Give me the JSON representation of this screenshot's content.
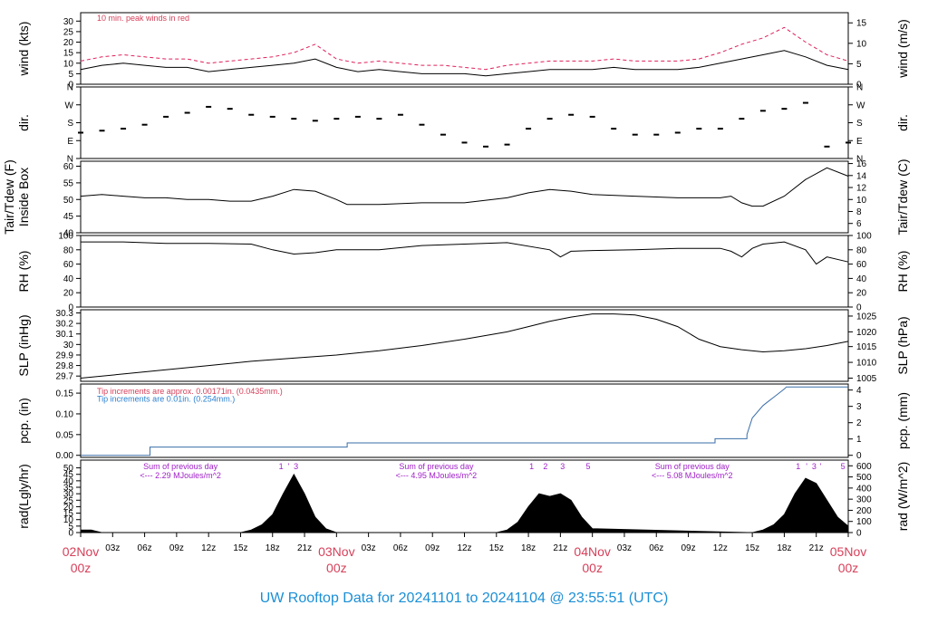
{
  "title": "UW Rooftop Data for 20241101  to  20241104 @ 23:55:51  (UTC)",
  "colors": {
    "title": "#1b8fd6",
    "date_label": "#d6405a",
    "peak": "#e0205a",
    "note_red": "#d6405a",
    "note_blue": "#2a7fd0",
    "pcp_line": "#3a6ea8",
    "solar_text": "#a020c8",
    "data": "#000000"
  },
  "x_axis": {
    "date_labels": [
      {
        "hour": 0,
        "line1": "02Nov",
        "line2": "00z"
      },
      {
        "hour": 24,
        "line1": "03Nov",
        "line2": "00z"
      },
      {
        "hour": 48,
        "line1": "04Nov",
        "line2": "00z"
      },
      {
        "hour": 72,
        "line1": "05Nov",
        "line2": "00z"
      }
    ],
    "hour_ticks": [
      {
        "hour": 3,
        "label": "03z"
      },
      {
        "hour": 6,
        "label": "06z"
      },
      {
        "hour": 9,
        "label": "09z"
      },
      {
        "hour": 12,
        "label": "12z"
      },
      {
        "hour": 15,
        "label": "15z"
      },
      {
        "hour": 18,
        "label": "18z"
      },
      {
        "hour": 21,
        "label": "21z"
      },
      {
        "hour": 27,
        "label": "03z"
      },
      {
        "hour": 30,
        "label": "06z"
      },
      {
        "hour": 33,
        "label": "09z"
      },
      {
        "hour": 36,
        "label": "12z"
      },
      {
        "hour": 39,
        "label": "15z"
      },
      {
        "hour": 42,
        "label": "18z"
      },
      {
        "hour": 45,
        "label": "21z"
      },
      {
        "hour": 51,
        "label": "03z"
      },
      {
        "hour": 54,
        "label": "06z"
      },
      {
        "hour": 57,
        "label": "09z"
      },
      {
        "hour": 60,
        "label": "12z"
      },
      {
        "hour": 63,
        "label": "15z"
      },
      {
        "hour": 66,
        "label": "18z"
      },
      {
        "hour": 69,
        "label": "21z"
      }
    ]
  },
  "chart_data": [
    {
      "type": "line",
      "id": "wind",
      "ylabel": "wind (kts)",
      "ylabel_right": "wind (m/s)",
      "ylim": [
        0,
        34
      ],
      "yticks": [
        0,
        5,
        10,
        15,
        20,
        25,
        30
      ],
      "right_ticks": [
        {
          "value": 0,
          "label": "0"
        },
        {
          "value": 9.72,
          "label": "5"
        },
        {
          "value": 19.44,
          "label": "10"
        },
        {
          "value": 29.16,
          "label": "15"
        }
      ],
      "annotation": "10 min. peak winds in red",
      "series": [
        {
          "role": "wind",
          "x": [
            0,
            2,
            4,
            6,
            8,
            10,
            12,
            14,
            16,
            18,
            20,
            22,
            24,
            26,
            28,
            30,
            32,
            34,
            36,
            38,
            40,
            42,
            44,
            46,
            48,
            50,
            52,
            54,
            56,
            58,
            60,
            62,
            64,
            66,
            68,
            70,
            72
          ],
          "y": [
            7,
            9,
            10,
            9,
            8,
            8,
            6,
            7,
            8,
            9,
            10,
            12,
            8,
            6,
            7,
            6,
            5,
            5,
            5,
            4,
            5,
            6,
            7,
            7,
            7,
            8,
            7,
            7,
            7,
            8,
            10,
            12,
            14,
            16,
            13,
            9,
            7
          ]
        },
        {
          "role": "peak",
          "x": [
            0,
            2,
            4,
            6,
            8,
            10,
            12,
            14,
            16,
            18,
            20,
            22,
            24,
            26,
            28,
            30,
            32,
            34,
            36,
            38,
            40,
            42,
            44,
            46,
            48,
            50,
            52,
            54,
            56,
            58,
            60,
            62,
            64,
            66,
            68,
            70,
            72
          ],
          "y": [
            11,
            13,
            14,
            13,
            12,
            12,
            10,
            11,
            12,
            13,
            15,
            19,
            12,
            10,
            11,
            10,
            9,
            9,
            8,
            7,
            9,
            10,
            11,
            11,
            11,
            12,
            11,
            11,
            11,
            12,
            15,
            19,
            22,
            27,
            20,
            14,
            11
          ]
        }
      ]
    },
    {
      "type": "scatter",
      "id": "dir",
      "ylabel": "dir.",
      "ylabel_right": "dir.",
      "ylim": [
        0,
        360
      ],
      "ytick_values": [
        0,
        90,
        180,
        270,
        360
      ],
      "ytick_labels": [
        "N",
        "E",
        "S",
        "W",
        "N"
      ],
      "series": [
        {
          "role": "direction",
          "x": [
            0,
            2,
            4,
            6,
            8,
            10,
            12,
            14,
            16,
            18,
            20,
            22,
            24,
            26,
            28,
            30,
            32,
            34,
            36,
            38,
            40,
            42,
            44,
            46,
            48,
            50,
            52,
            54,
            56,
            58,
            60,
            62,
            64,
            66,
            68,
            70,
            72
          ],
          "y": [
            130,
            140,
            150,
            170,
            210,
            230,
            260,
            250,
            220,
            210,
            200,
            190,
            200,
            210,
            200,
            220,
            170,
            120,
            80,
            60,
            70,
            150,
            200,
            220,
            210,
            150,
            120,
            120,
            130,
            150,
            150,
            200,
            240,
            250,
            280,
            60,
            80
          ]
        }
      ]
    },
    {
      "type": "line",
      "id": "temp",
      "ylabel": "Tair/Tdew (F)\nInside Box",
      "ylabel_right": "Tair/Tdew (C)",
      "ylim": [
        40,
        61.5
      ],
      "yticks": [
        40,
        45,
        50,
        55,
        60
      ],
      "right_ticks": [
        {
          "value": 42.8,
          "label": "6"
        },
        {
          "value": 46.4,
          "label": "8"
        },
        {
          "value": 50,
          "label": "10"
        },
        {
          "value": 53.6,
          "label": "12"
        },
        {
          "value": 57.2,
          "label": "14"
        },
        {
          "value": 60.8,
          "label": "16"
        }
      ],
      "series": [
        {
          "role": "tair",
          "x": [
            0,
            2,
            4,
            6,
            8,
            10,
            12,
            14,
            16,
            18,
            20,
            22,
            24,
            25,
            28,
            32,
            36,
            40,
            42,
            44,
            46,
            48,
            52,
            56,
            60,
            61,
            62,
            63,
            64,
            66,
            68,
            70,
            72
          ],
          "y": [
            51,
            51.5,
            51,
            50.5,
            50.5,
            50,
            50,
            49.5,
            49.5,
            51,
            53,
            52.5,
            50,
            48.5,
            48.5,
            49,
            49,
            50.5,
            52,
            53,
            52.5,
            51.5,
            51,
            50.5,
            50.5,
            51,
            49,
            48,
            48,
            51,
            56,
            59.5,
            57
          ]
        }
      ]
    },
    {
      "type": "line",
      "id": "rh",
      "ylabel": "RH (%)",
      "ylabel_right": "RH (%)",
      "ylim": [
        0,
        100
      ],
      "yticks": [
        0,
        20,
        40,
        60,
        80,
        100
      ],
      "right_ticks": [
        {
          "value": 0,
          "label": "0"
        },
        {
          "value": 20,
          "label": "20"
        },
        {
          "value": 40,
          "label": "40"
        },
        {
          "value": 60,
          "label": "60"
        },
        {
          "value": 80,
          "label": "80"
        },
        {
          "value": 100,
          "label": "100"
        }
      ],
      "series": [
        {
          "role": "rh",
          "x": [
            0,
            4,
            8,
            12,
            16,
            18,
            20,
            22,
            24,
            28,
            32,
            36,
            40,
            44,
            45,
            46,
            48,
            52,
            56,
            60,
            61,
            62,
            63,
            64,
            66,
            68,
            69,
            70,
            72
          ],
          "y": [
            91,
            91,
            89,
            89,
            88,
            80,
            74,
            76,
            80,
            80,
            86,
            88,
            90,
            80,
            70,
            78,
            79,
            80,
            82,
            82,
            78,
            70,
            82,
            88,
            91,
            80,
            60,
            70,
            63
          ]
        }
      ]
    },
    {
      "type": "line",
      "id": "slp",
      "ylabel": "SLP (inHg)",
      "ylabel_right": "SLP (hPa)",
      "ylim": [
        29.65,
        30.33
      ],
      "yticks": [
        29.7,
        29.8,
        29.9,
        30.0,
        30.1,
        30.2,
        30.3
      ],
      "right_ticks": [
        {
          "value": 29.68,
          "label": "1005"
        },
        {
          "value": 29.83,
          "label": "1010"
        },
        {
          "value": 29.98,
          "label": "1015"
        },
        {
          "value": 30.12,
          "label": "1020"
        },
        {
          "value": 30.27,
          "label": "1025"
        }
      ],
      "series": [
        {
          "role": "slp",
          "x": [
            0,
            4,
            8,
            12,
            16,
            20,
            24,
            28,
            32,
            36,
            40,
            42,
            44,
            46,
            48,
            50,
            52,
            54,
            56,
            58,
            60,
            62,
            64,
            66,
            68,
            70,
            72
          ],
          "y": [
            29.68,
            29.72,
            29.76,
            29.8,
            29.84,
            29.87,
            29.9,
            29.94,
            29.99,
            30.05,
            30.12,
            30.17,
            30.22,
            30.26,
            30.29,
            30.29,
            30.28,
            30.24,
            30.17,
            30.05,
            29.98,
            29.95,
            29.93,
            29.94,
            29.96,
            29.99,
            30.03
          ]
        }
      ]
    },
    {
      "type": "line",
      "id": "pcp",
      "ylabel": "pcp. (in)",
      "ylabel_right": "pcp. (mm)",
      "ylim": [
        -0.005,
        0.172
      ],
      "yticks": [
        0.0,
        0.05,
        0.1,
        0.15
      ],
      "ytick_labels": [
        "0.00",
        "0.05",
        "0.10",
        "0.15"
      ],
      "right_ticks": [
        {
          "value": 0,
          "label": "0"
        },
        {
          "value": 0.0394,
          "label": "1"
        },
        {
          "value": 0.0787,
          "label": "2"
        },
        {
          "value": 0.1181,
          "label": "3"
        },
        {
          "value": 0.1575,
          "label": "4"
        }
      ],
      "notes": [
        {
          "text": "Tip increments are approx. 0.00171in. (0.0435mm.)",
          "color": "note_red"
        },
        {
          "text": "Tip increments are 0.01in. (0.254mm.)",
          "color": "note_blue"
        }
      ],
      "series": [
        {
          "role": "pcp",
          "step": true,
          "x": [
            0,
            6.5,
            6.5,
            25,
            25,
            59.5,
            59.5,
            62.5,
            62.5,
            63,
            64,
            64.5,
            65,
            65.5,
            66,
            66.2,
            72
          ],
          "y": [
            0,
            0,
            0.02,
            0.02,
            0.03,
            0.03,
            0.04,
            0.04,
            0.05,
            0.09,
            0.12,
            0.13,
            0.14,
            0.15,
            0.16,
            0.165,
            0.165
          ]
        }
      ]
    },
    {
      "type": "area",
      "id": "rad",
      "ylabel": "rad(Lgly/hr)",
      "ylabel_right": "rad (W/m^2)",
      "ylim": [
        0,
        56
      ],
      "yticks": [
        0,
        5,
        10,
        15,
        20,
        25,
        30,
        35,
        40,
        45,
        50
      ],
      "right_ticks": [
        {
          "value": 0,
          "label": "0"
        },
        {
          "value": 8.6,
          "label": "100"
        },
        {
          "value": 17.2,
          "label": "200"
        },
        {
          "value": 25.8,
          "label": "300"
        },
        {
          "value": 34.4,
          "label": "400"
        },
        {
          "value": 43.0,
          "label": "500"
        },
        {
          "value": 51.6,
          "label": "600"
        }
      ],
      "daily_notes": [
        {
          "hour": 8,
          "line1": "Sum of previous day",
          "line2": "<--- 2.29 MJoules/m^2"
        },
        {
          "hour": 32,
          "line1": "Sum of previous day",
          "line2": "<--- 4.95 MJoules/m^2"
        },
        {
          "hour": 56,
          "line1": "Sum of previous day",
          "line2": "<--- 5.08 MJoules/m^2"
        }
      ],
      "hour_marks": [
        {
          "hour": 18.8,
          "label": "1"
        },
        {
          "hour": 19.5,
          "label": "'"
        },
        {
          "hour": 20.2,
          "label": "3"
        },
        {
          "hour": 42.3,
          "label": "1"
        },
        {
          "hour": 43.6,
          "label": "2"
        },
        {
          "hour": 45.2,
          "label": "3"
        },
        {
          "hour": 47.6,
          "label": "5"
        },
        {
          "hour": 67.3,
          "label": "1"
        },
        {
          "hour": 68.1,
          "label": "'"
        },
        {
          "hour": 68.8,
          "label": "3"
        },
        {
          "hour": 69.4,
          "label": "'"
        },
        {
          "hour": 71.5,
          "label": "5"
        }
      ],
      "series": [
        {
          "role": "radiation",
          "x": [
            0,
            0.5,
            1,
            1.5,
            2,
            15,
            16,
            17,
            18,
            19,
            20,
            21,
            22,
            23,
            24,
            39,
            40,
            41,
            42,
            43,
            44,
            45,
            46,
            47,
            48,
            63,
            64,
            65,
            66,
            67,
            68,
            69,
            70,
            71,
            72
          ],
          "y": [
            2,
            2,
            2,
            1,
            0,
            0,
            2,
            6,
            14,
            30,
            45,
            30,
            12,
            3,
            0,
            0,
            2,
            8,
            20,
            30,
            28,
            30,
            25,
            12,
            3,
            0,
            2,
            6,
            14,
            30,
            42,
            38,
            25,
            12,
            5
          ]
        }
      ]
    }
  ]
}
